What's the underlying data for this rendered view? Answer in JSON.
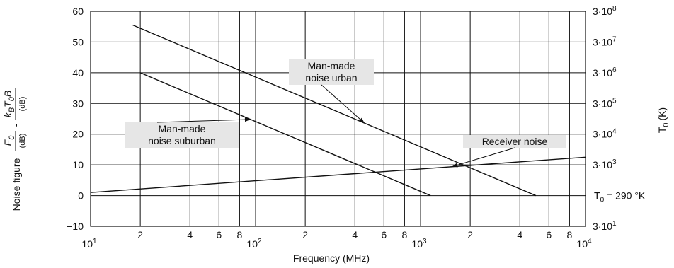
{
  "chart_data": {
    "type": "line",
    "xscale": "log",
    "xlim": [
      10,
      10000
    ],
    "ylim": [
      -10,
      60
    ],
    "xlabel": "Frequency (MHz)",
    "ylabel": {
      "prefix": "Noise figure",
      "f_num": "F",
      "f_sub": "0",
      "f_den": "(dB)",
      "dash": "-",
      "kt_num_k": "k",
      "kt_num_ksub": "B",
      "kt_num_t": "T",
      "kt_num_tsub": "0",
      "kt_num_b": "B",
      "kt_den": "(dB)"
    },
    "y2label": {
      "main": "T",
      "sub": "0",
      "unit": "(K)"
    },
    "y_ticks": [
      "−10",
      "0",
      "10",
      "20",
      "30",
      "40",
      "50",
      "60"
    ],
    "x_major_labels": [
      {
        "base": "10",
        "exp": "1"
      },
      {
        "base": "10",
        "exp": "2"
      },
      {
        "base": "10",
        "exp": "3"
      },
      {
        "base": "10",
        "exp": "4"
      }
    ],
    "x_minor_labels": [
      "2",
      "4",
      "6",
      "8"
    ],
    "y2_ticks": [
      {
        "base": "3·10",
        "exp": "1"
      },
      {
        "base": "",
        "exp": ""
      },
      {
        "base": "3·10",
        "exp": "3"
      },
      {
        "base": "3·10",
        "exp": "4"
      },
      {
        "base": "3·10",
        "exp": "5"
      },
      {
        "base": "3·10",
        "exp": "6"
      },
      {
        "base": "3·10",
        "exp": "7"
      },
      {
        "base": "3·10",
        "exp": "8"
      }
    ],
    "y2_zero_label": {
      "t": "T",
      "sub": "0",
      "rest": " = 290 °K"
    },
    "series": [
      {
        "name": "Man-made noise urban",
        "x": [
          18,
          5000
        ],
        "y": [
          55.5,
          0
        ]
      },
      {
        "name": "Man-made noise suburban",
        "x": [
          20,
          1150
        ],
        "y": [
          40,
          0
        ]
      },
      {
        "name": "Receiver noise",
        "x": [
          10,
          10000
        ],
        "y": [
          1,
          12.5
        ]
      }
    ],
    "annotations": [
      {
        "lines": [
          "Man-made",
          "noise urban"
        ],
        "series": 0
      },
      {
        "lines": [
          "Man-made",
          "noise suburban"
        ],
        "series": 1
      },
      {
        "lines": [
          "Receiver noise"
        ],
        "series": 2
      }
    ],
    "grid": true,
    "legend": "none"
  }
}
